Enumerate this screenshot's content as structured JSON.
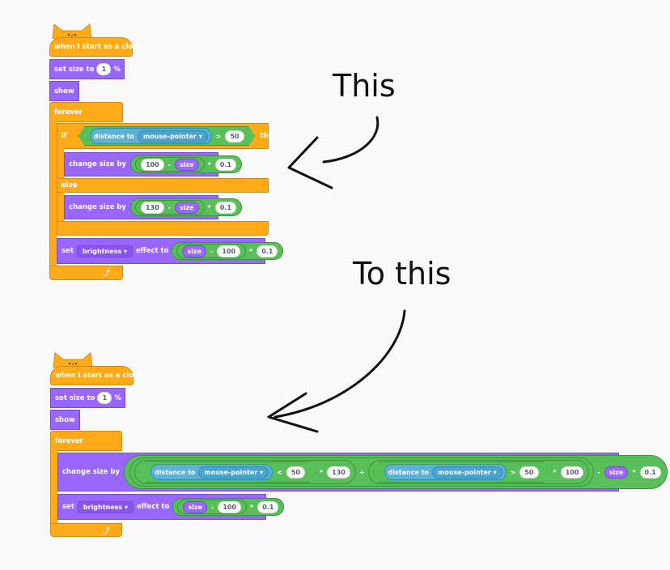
{
  "annotations": {
    "top_label": "This",
    "bottom_label": "To this"
  },
  "scripts": {
    "hat_label": "when I start as a clone",
    "set_size_label": "set size to",
    "set_size_value": "1",
    "percent": "%",
    "show_label": "show",
    "forever_label": "forever",
    "if_label": "if",
    "then_label": "then",
    "else_label": "else",
    "distance_label": "distance to",
    "mouse_pointer": "mouse-pointer",
    "gt": ">",
    "lt": "<",
    "fifty": "50",
    "change_size_label": "change size by",
    "minus": "-",
    "times": "*",
    "plus": "+",
    "size_reporter": "size",
    "v100": "100",
    "v130": "130",
    "v01": "0.1",
    "set_label": "set",
    "brightness": "brightness",
    "effect_to": "effect to",
    "loop_arrow": "⤴",
    "dropdown_arrow": "▾"
  },
  "colors": {
    "events": "#ffab19",
    "looks": "#9966ff",
    "sensing": "#5cb1d6",
    "operators": "#59c059"
  }
}
